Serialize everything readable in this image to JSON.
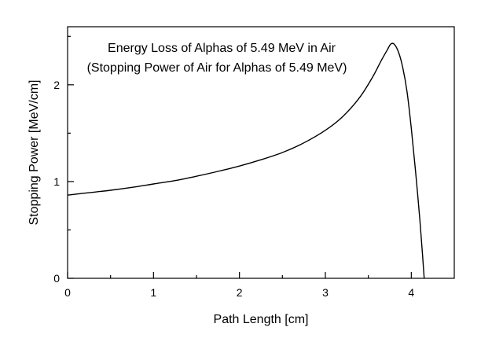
{
  "chart_data": {
    "type": "line",
    "title": "Energy Loss of Alphas of 5.49 MeV in Air",
    "subtitle": "(Stopping Power of Air for Alphas of 5.49 MeV)",
    "xlabel": "Path Length [cm]",
    "ylabel": "Stopping Power [MeV/cm]",
    "xlim": [
      0,
      4.5
    ],
    "ylim": [
      0,
      2.6
    ],
    "x_ticks": [
      0,
      1,
      2,
      3,
      4
    ],
    "y_ticks": [
      0,
      1,
      2
    ],
    "x_tick_labels": [
      "0",
      "1",
      "2",
      "3",
      "4"
    ],
    "y_tick_labels": [
      "0",
      "1",
      "2"
    ],
    "grid": false,
    "series": [
      {
        "x": [
          0,
          0.25,
          0.5,
          0.75,
          1.0,
          1.25,
          1.5,
          1.75,
          2.0,
          2.25,
          2.5,
          2.75,
          3.0,
          3.2,
          3.4,
          3.55,
          3.65,
          3.72,
          3.76,
          3.8,
          3.85,
          3.9,
          3.95,
          4.0,
          4.05,
          4.1,
          4.13,
          4.15
        ],
        "y": [
          0.86,
          0.885,
          0.91,
          0.94,
          0.975,
          1.01,
          1.055,
          1.105,
          1.16,
          1.225,
          1.3,
          1.4,
          1.53,
          1.67,
          1.87,
          2.08,
          2.25,
          2.36,
          2.42,
          2.42,
          2.34,
          2.18,
          1.93,
          1.55,
          1.1,
          0.6,
          0.25,
          0.0
        ]
      }
    ]
  }
}
